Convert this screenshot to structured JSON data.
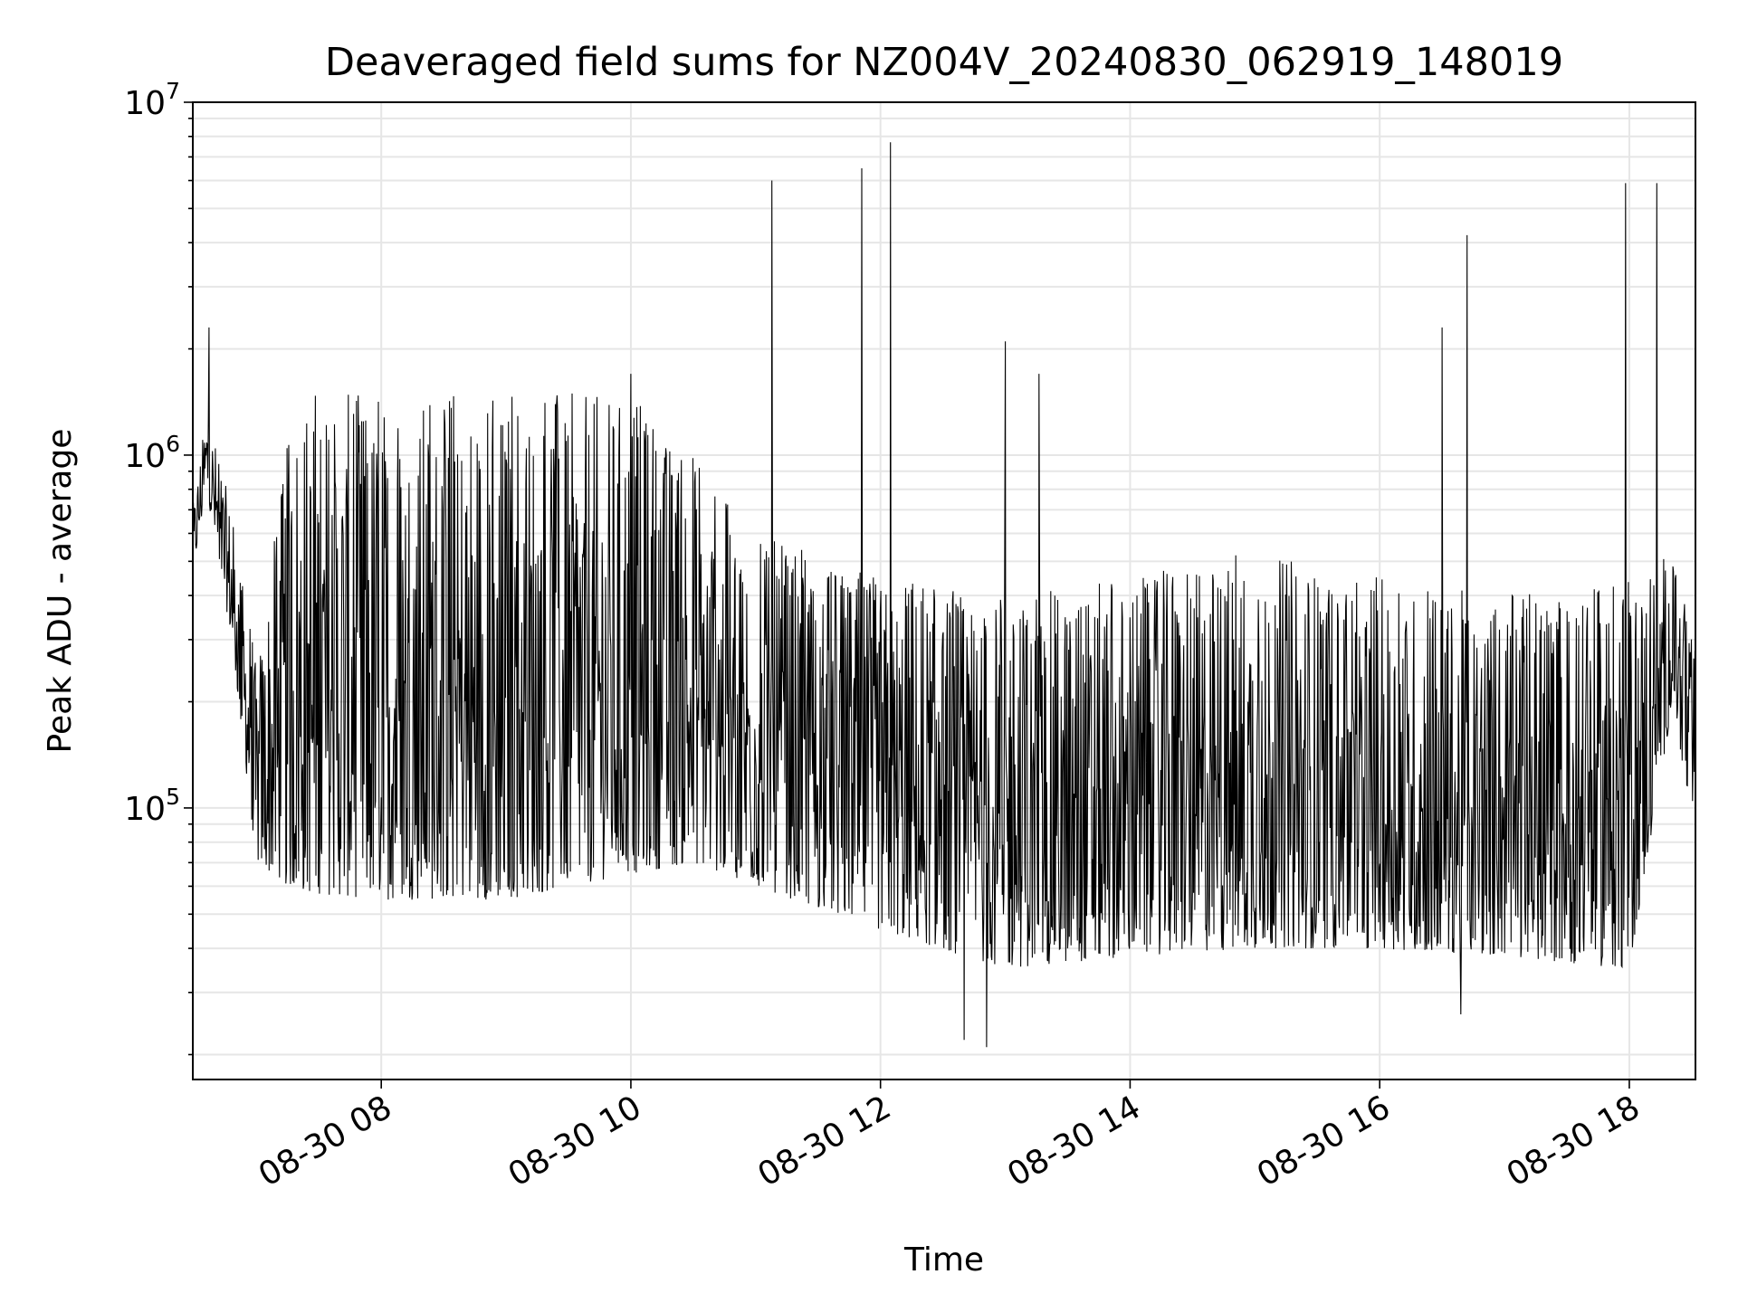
{
  "chart_data": {
    "type": "line",
    "title": "Deaveraged field sums for NZ004V_20240830_062919_148019",
    "xlabel": "Time",
    "ylabel": "Peak ADU - average",
    "x_axis": {
      "kind": "time",
      "start": "2024-08-30T06:29:19",
      "end": "2024-08-30T18:32:00",
      "range_hours": [
        6.49,
        18.53
      ],
      "ticks": [
        {
          "hour": 8,
          "label": "08-30 08"
        },
        {
          "hour": 10,
          "label": "08-30 10"
        },
        {
          "hour": 12,
          "label": "08-30 12"
        },
        {
          "hour": 14,
          "label": "08-30 14"
        },
        {
          "hour": 16,
          "label": "08-30 16"
        },
        {
          "hour": 18,
          "label": "08-30 18"
        }
      ]
    },
    "y_axis": {
      "scale": "log",
      "ylim": [
        17000,
        10000000
      ],
      "ticks": [
        {
          "value": 100000,
          "base": "10",
          "exp": "5"
        },
        {
          "value": 1000000,
          "base": "10",
          "exp": "6"
        },
        {
          "value": 10000000,
          "base": "10",
          "exp": "7"
        }
      ]
    },
    "grid": true,
    "line_color": "#000000",
    "grid_color": "#e6e6e6",
    "series": [
      {
        "approx_envelope": [
          {
            "hour": 6.5,
            "low": 480000,
            "high": 750000
          },
          {
            "hour": 6.6,
            "low": 800000,
            "high": 1400000
          },
          {
            "hour": 6.8,
            "low": 300000,
            "high": 700000
          },
          {
            "hour": 7.0,
            "low": 70000,
            "high": 250000
          },
          {
            "hour": 7.3,
            "low": 58000,
            "high": 1500000
          },
          {
            "hour": 8.0,
            "low": 55000,
            "high": 1500000
          },
          {
            "hour": 9.0,
            "low": 55000,
            "high": 1500000
          },
          {
            "hour": 10.0,
            "low": 65000,
            "high": 1500000
          },
          {
            "hour": 10.5,
            "low": 70000,
            "high": 1000000
          },
          {
            "hour": 11.0,
            "low": 60000,
            "high": 600000
          },
          {
            "hour": 12.0,
            "low": 45000,
            "high": 450000
          },
          {
            "hour": 13.0,
            "low": 35000,
            "high": 400000
          },
          {
            "hour": 14.0,
            "low": 38000,
            "high": 450000
          },
          {
            "hour": 15.0,
            "low": 40000,
            "high": 550000
          },
          {
            "hour": 16.0,
            "low": 40000,
            "high": 450000
          },
          {
            "hour": 17.0,
            "low": 38000,
            "high": 400000
          },
          {
            "hour": 18.0,
            "low": 35000,
            "high": 450000
          },
          {
            "hour": 18.35,
            "low": 200000,
            "high": 550000
          },
          {
            "hour": 18.5,
            "low": 90000,
            "high": 300000
          }
        ],
        "spikes": [
          {
            "hour": 6.62,
            "value": 2300000
          },
          {
            "hour": 10.0,
            "value": 1700000
          },
          {
            "hour": 11.13,
            "value": 6000000
          },
          {
            "hour": 11.85,
            "value": 6500000
          },
          {
            "hour": 12.08,
            "value": 7700000
          },
          {
            "hour": 13.0,
            "value": 2100000
          },
          {
            "hour": 13.27,
            "value": 1700000
          },
          {
            "hour": 16.5,
            "value": 2300000
          },
          {
            "hour": 16.7,
            "value": 4200000
          },
          {
            "hour": 17.97,
            "value": 5900000
          },
          {
            "hour": 18.22,
            "value": 5900000
          },
          {
            "hour": 12.67,
            "value": 22000
          },
          {
            "hour": 12.85,
            "value": 21000
          },
          {
            "hour": 16.65,
            "value": 26000
          }
        ]
      }
    ]
  }
}
